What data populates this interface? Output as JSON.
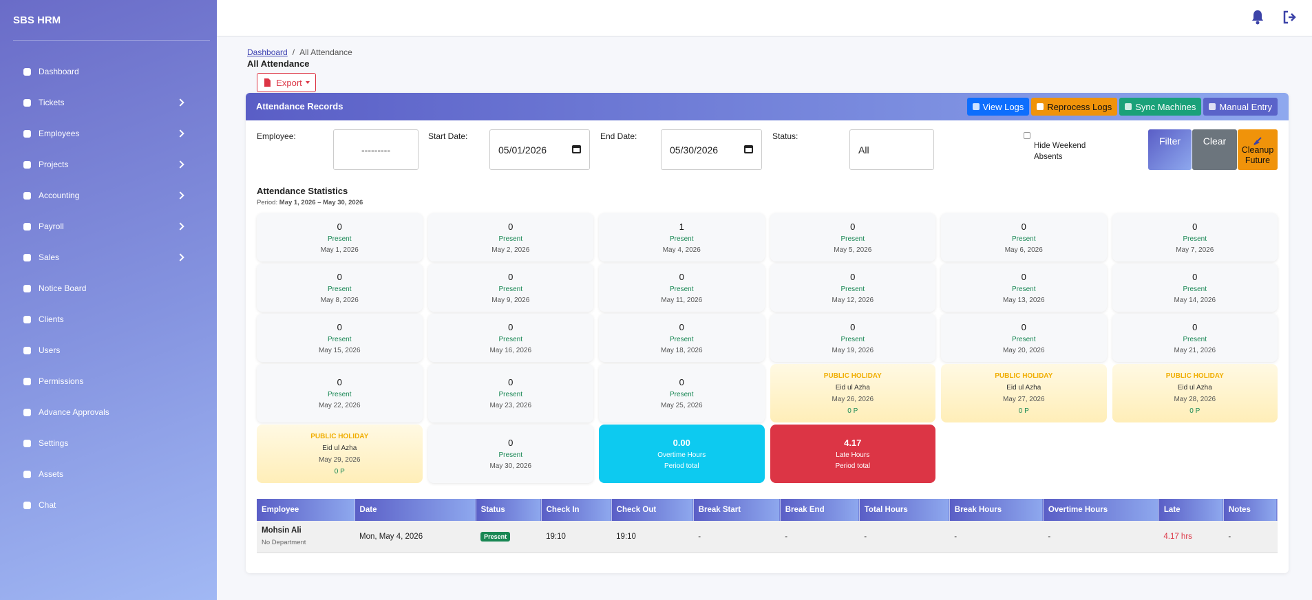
{
  "brand": "SBS HRM",
  "nav": [
    {
      "label": "Dashboard",
      "has_submenu": false
    },
    {
      "label": "Tickets",
      "has_submenu": true
    },
    {
      "label": "Employees",
      "has_submenu": true
    },
    {
      "label": "Projects",
      "has_submenu": true
    },
    {
      "label": "Accounting",
      "has_submenu": true
    },
    {
      "label": "Payroll",
      "has_submenu": true
    },
    {
      "label": "Sales",
      "has_submenu": true
    },
    {
      "label": "Notice Board",
      "has_submenu": false
    },
    {
      "label": "Clients",
      "has_submenu": false
    },
    {
      "label": "Users",
      "has_submenu": false
    },
    {
      "label": "Permissions",
      "has_submenu": false
    },
    {
      "label": "Advance Approvals",
      "has_submenu": false
    },
    {
      "label": "Settings",
      "has_submenu": false
    },
    {
      "label": "Assets",
      "has_submenu": false
    },
    {
      "label": "Chat",
      "has_submenu": false
    }
  ],
  "breadcrumb": {
    "items": [
      "Dashboard",
      "All Attendance"
    ],
    "separator": "/"
  },
  "page_title": "All Attendance",
  "export": "Export",
  "card_title": "Attendance Records",
  "actions": [
    {
      "label": "View Logs",
      "color": "#0d6efd"
    },
    {
      "label": "Reprocess Logs",
      "color": "#f0930a"
    },
    {
      "label": "Sync Machines",
      "color": "#1aa179"
    },
    {
      "label": "Manual Entry",
      "color": "#5a63c9"
    }
  ],
  "filters": {
    "employee_label": "Employee:",
    "employee_value": "---------",
    "start_label": "Start Date:",
    "start_value": "05/01/2026",
    "end_label": "End Date:",
    "end_value": "05/30/2026",
    "status_label": "Status:",
    "status_value": "All",
    "hide_weekend": "Hide Weekend Absents",
    "filter": "Filter",
    "clear": "Clear",
    "cleanup": "Cleanup Future"
  },
  "stats_title": "Attendance Statistics",
  "period_label": "Period:",
  "period": "May 1, 2026 – May 30, 2026",
  "cards": [
    {
      "kind": "day",
      "value": 0,
      "label": "Present",
      "date": "May 1, 2026"
    },
    {
      "kind": "day",
      "value": 0,
      "label": "Present",
      "date": "May 2, 2026"
    },
    {
      "kind": "day",
      "value": 1,
      "label": "Present",
      "date": "May 4, 2026"
    },
    {
      "kind": "day",
      "value": 0,
      "label": "Present",
      "date": "May 5, 2026"
    },
    {
      "kind": "day",
      "value": 0,
      "label": "Present",
      "date": "May 6, 2026"
    },
    {
      "kind": "day",
      "value": 0,
      "label": "Present",
      "date": "May 7, 2026"
    },
    {
      "kind": "day",
      "value": 0,
      "label": "Present",
      "date": "May 8, 2026"
    },
    {
      "kind": "day",
      "value": 0,
      "label": "Present",
      "date": "May 9, 2026"
    },
    {
      "kind": "day",
      "value": 0,
      "label": "Present",
      "date": "May 11, 2026"
    },
    {
      "kind": "day",
      "value": 0,
      "label": "Present",
      "date": "May 12, 2026"
    },
    {
      "kind": "day",
      "value": 0,
      "label": "Present",
      "date": "May 13, 2026"
    },
    {
      "kind": "day",
      "value": 0,
      "label": "Present",
      "date": "May 14, 2026"
    },
    {
      "kind": "day",
      "value": 0,
      "label": "Present",
      "date": "May 15, 2026"
    },
    {
      "kind": "day",
      "value": 0,
      "label": "Present",
      "date": "May 16, 2026"
    },
    {
      "kind": "day",
      "value": 0,
      "label": "Present",
      "date": "May 18, 2026"
    },
    {
      "kind": "day",
      "value": 0,
      "label": "Present",
      "date": "May 19, 2026"
    },
    {
      "kind": "day",
      "value": 0,
      "label": "Present",
      "date": "May 20, 2026"
    },
    {
      "kind": "day",
      "value": 0,
      "label": "Present",
      "date": "May 21, 2026"
    },
    {
      "kind": "day",
      "value": 0,
      "label": "Present",
      "date": "May 22, 2026"
    },
    {
      "kind": "day",
      "value": 0,
      "label": "Present",
      "date": "May 23, 2026"
    },
    {
      "kind": "day",
      "value": 0,
      "label": "Present",
      "date": "May 25, 2026"
    },
    {
      "kind": "holiday",
      "badge": "PUBLIC HOLIDAY",
      "name": "Eid ul Azha",
      "date": "May 26, 2026",
      "note": "0 P"
    },
    {
      "kind": "holiday",
      "badge": "PUBLIC HOLIDAY",
      "name": "Eid ul Azha",
      "date": "May 27, 2026",
      "note": "0 P"
    },
    {
      "kind": "holiday",
      "badge": "PUBLIC HOLIDAY",
      "name": "Eid ul Azha",
      "date": "May 28, 2026",
      "note": "0 P"
    },
    {
      "kind": "holiday",
      "badge": "PUBLIC HOLIDAY",
      "name": "Eid ul Azha",
      "date": "May 29, 2026",
      "note": "0 P"
    },
    {
      "kind": "day",
      "value": 0,
      "label": "Present",
      "date": "May 30, 2026"
    },
    {
      "kind": "summary",
      "value": "0.00",
      "label": "Overtime Hours",
      "sub": "Period total",
      "color": "#0dcaf0"
    },
    {
      "kind": "summary",
      "value": "4.17",
      "label": "Late Hours",
      "sub": "Period total",
      "color": "#dc3545"
    }
  ],
  "table": {
    "headers": [
      "Employee",
      "Date",
      "Status",
      "Check In",
      "Check Out",
      "Break Start",
      "Break End",
      "Total Hours",
      "Break Hours",
      "Overtime Hours",
      "Late",
      "Notes"
    ],
    "rows": [
      [
        {
          "text": "Mohsin Ali",
          "sub": "No Department"
        },
        "Mon, May 4, 2026",
        {
          "text": "Present",
          "style": "badge"
        },
        "19:10",
        "19:10",
        "-",
        "-",
        "-",
        "-",
        "-",
        {
          "text": "4.17 hrs",
          "style": "danger"
        },
        "-"
      ]
    ]
  }
}
